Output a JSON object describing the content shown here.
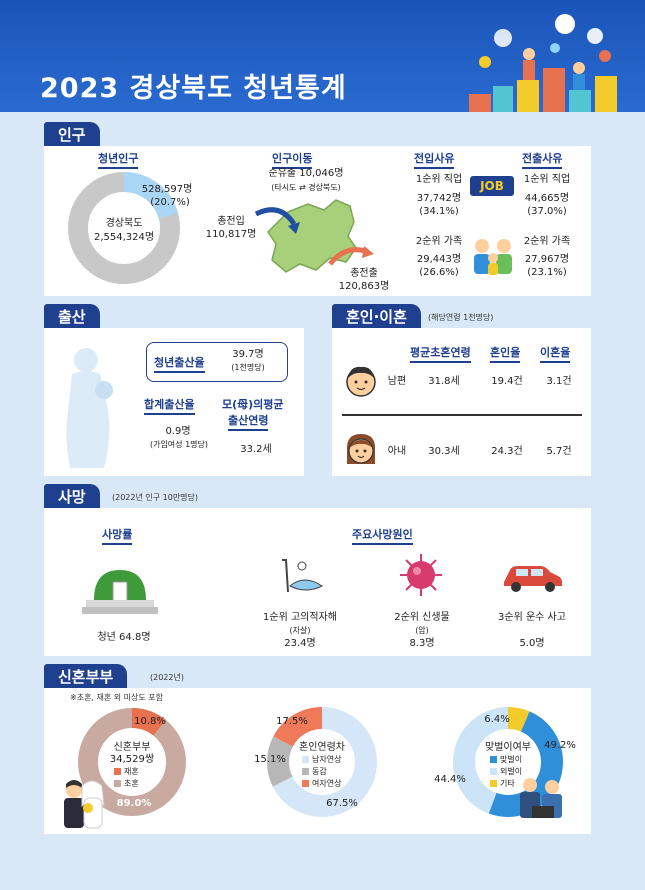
{
  "header": {
    "title": "2023 경상북도 청년통계"
  },
  "population": {
    "tab": "인구",
    "youth": {
      "label": "청년인구",
      "youth_value": "528,597명",
      "youth_pct": "(20.7%)",
      "total_name": "경상북도",
      "total_value": "2,554,324명",
      "youth_share": 20.7
    },
    "migration": {
      "label": "인구이동",
      "net_outflow": "순유출 10,046명",
      "net_note": "(타시도 ⇄ 경상북도)",
      "in_label": "총전입",
      "in_value": "110,817명",
      "out_label": "총전출",
      "out_value": "120,863명"
    },
    "in_reason": {
      "label": "전입사유",
      "r1": "1순위 직업",
      "r1_value": "37,742명",
      "r1_pct": "(34.1%)",
      "r2": "2순위 가족",
      "r2_value": "29,443명",
      "r2_pct": "(26.6%)"
    },
    "out_reason": {
      "label": "전출사유",
      "r1": "1순위 직업",
      "r1_value": "44,665명",
      "r1_pct": "(37.0%)",
      "r2": "2순위 가족",
      "r2_value": "27,967명",
      "r2_pct": "(23.1%)"
    },
    "job_badge": "JOB"
  },
  "birth": {
    "tab": "출산",
    "youth_rate_label": "청년출산율",
    "youth_rate_value": "39.7명",
    "youth_rate_unit": "(1천명당)",
    "tfr_label": "합계출산율",
    "tfr_value": "0.9명",
    "tfr_unit": "(가임여성 1명당)",
    "mother_age_label_1": "모(母)의평균",
    "mother_age_label_2": "출산연령",
    "mother_age_value": "33.2세"
  },
  "marriage": {
    "tab": "혼인·이혼",
    "note": "(해당연령 1천명당)",
    "col_age": "평균초혼연령",
    "col_marriage": "혼인율",
    "col_divorce": "이혼율",
    "husband": {
      "label": "남편",
      "age": "31.8세",
      "marriage": "19.4건",
      "divorce": "3.1건"
    },
    "wife": {
      "label": "아내",
      "age": "30.3세",
      "marriage": "24.3건",
      "divorce": "5.7건"
    }
  },
  "death": {
    "tab": "사망",
    "note": "(2022년 인구 10만명당)",
    "rate_label": "사망률",
    "rate_value": "청년 64.8명",
    "causes_label": "주요사망원인",
    "c1": "1순위 고의적자해",
    "c1_sub": "(자살)",
    "c1_value": "23.4명",
    "c2": "2순위 신생물",
    "c2_sub": "(암)",
    "c2_value": "8.3명",
    "c3": "3순위 운수 사고",
    "c3_value": "5.0명"
  },
  "newlywed": {
    "tab": "신혼부부",
    "tab_note": "(2022년)",
    "note": "※초혼, 재혼 외 미상도 포함",
    "donut1": {
      "title": "신혼부부",
      "value": "34,529쌍",
      "legend_remarry": "재혼",
      "legend_first": "초혼",
      "pct_remarry": "10.8%",
      "pct_first": "89.0%",
      "share_remarry": 10.8,
      "share_first": 89.0,
      "color_remarry": "#e8714f",
      "color_first": "#c9aaa0"
    },
    "donut2": {
      "title": "혼인연령차",
      "legend_older_m": "남자연상",
      "legend_same": "동갑",
      "legend_older_f": "여자연상",
      "pct_older_m": "67.5%",
      "pct_same": "15.1%",
      "pct_older_f": "17.5%",
      "share_older_m": 67.5,
      "share_same": 15.1,
      "share_older_f": 17.5,
      "color_older_m": "#d4e6f7",
      "color_same": "#b7b7b7",
      "color_older_f": "#ef7a5a"
    },
    "donut3": {
      "title": "맞벌이여부",
      "legend_dual": "맞벌이",
      "legend_single": "외벌이",
      "legend_other": "기타",
      "pct_dual": "49.2%",
      "pct_single": "44.4%",
      "pct_other": "6.4%",
      "share_dual": 49.2,
      "share_single": 44.4,
      "share_other": 6.4,
      "color_dual": "#2f8fd8",
      "color_single": "#cce4f7",
      "color_other": "#f3cc2b"
    }
  }
}
